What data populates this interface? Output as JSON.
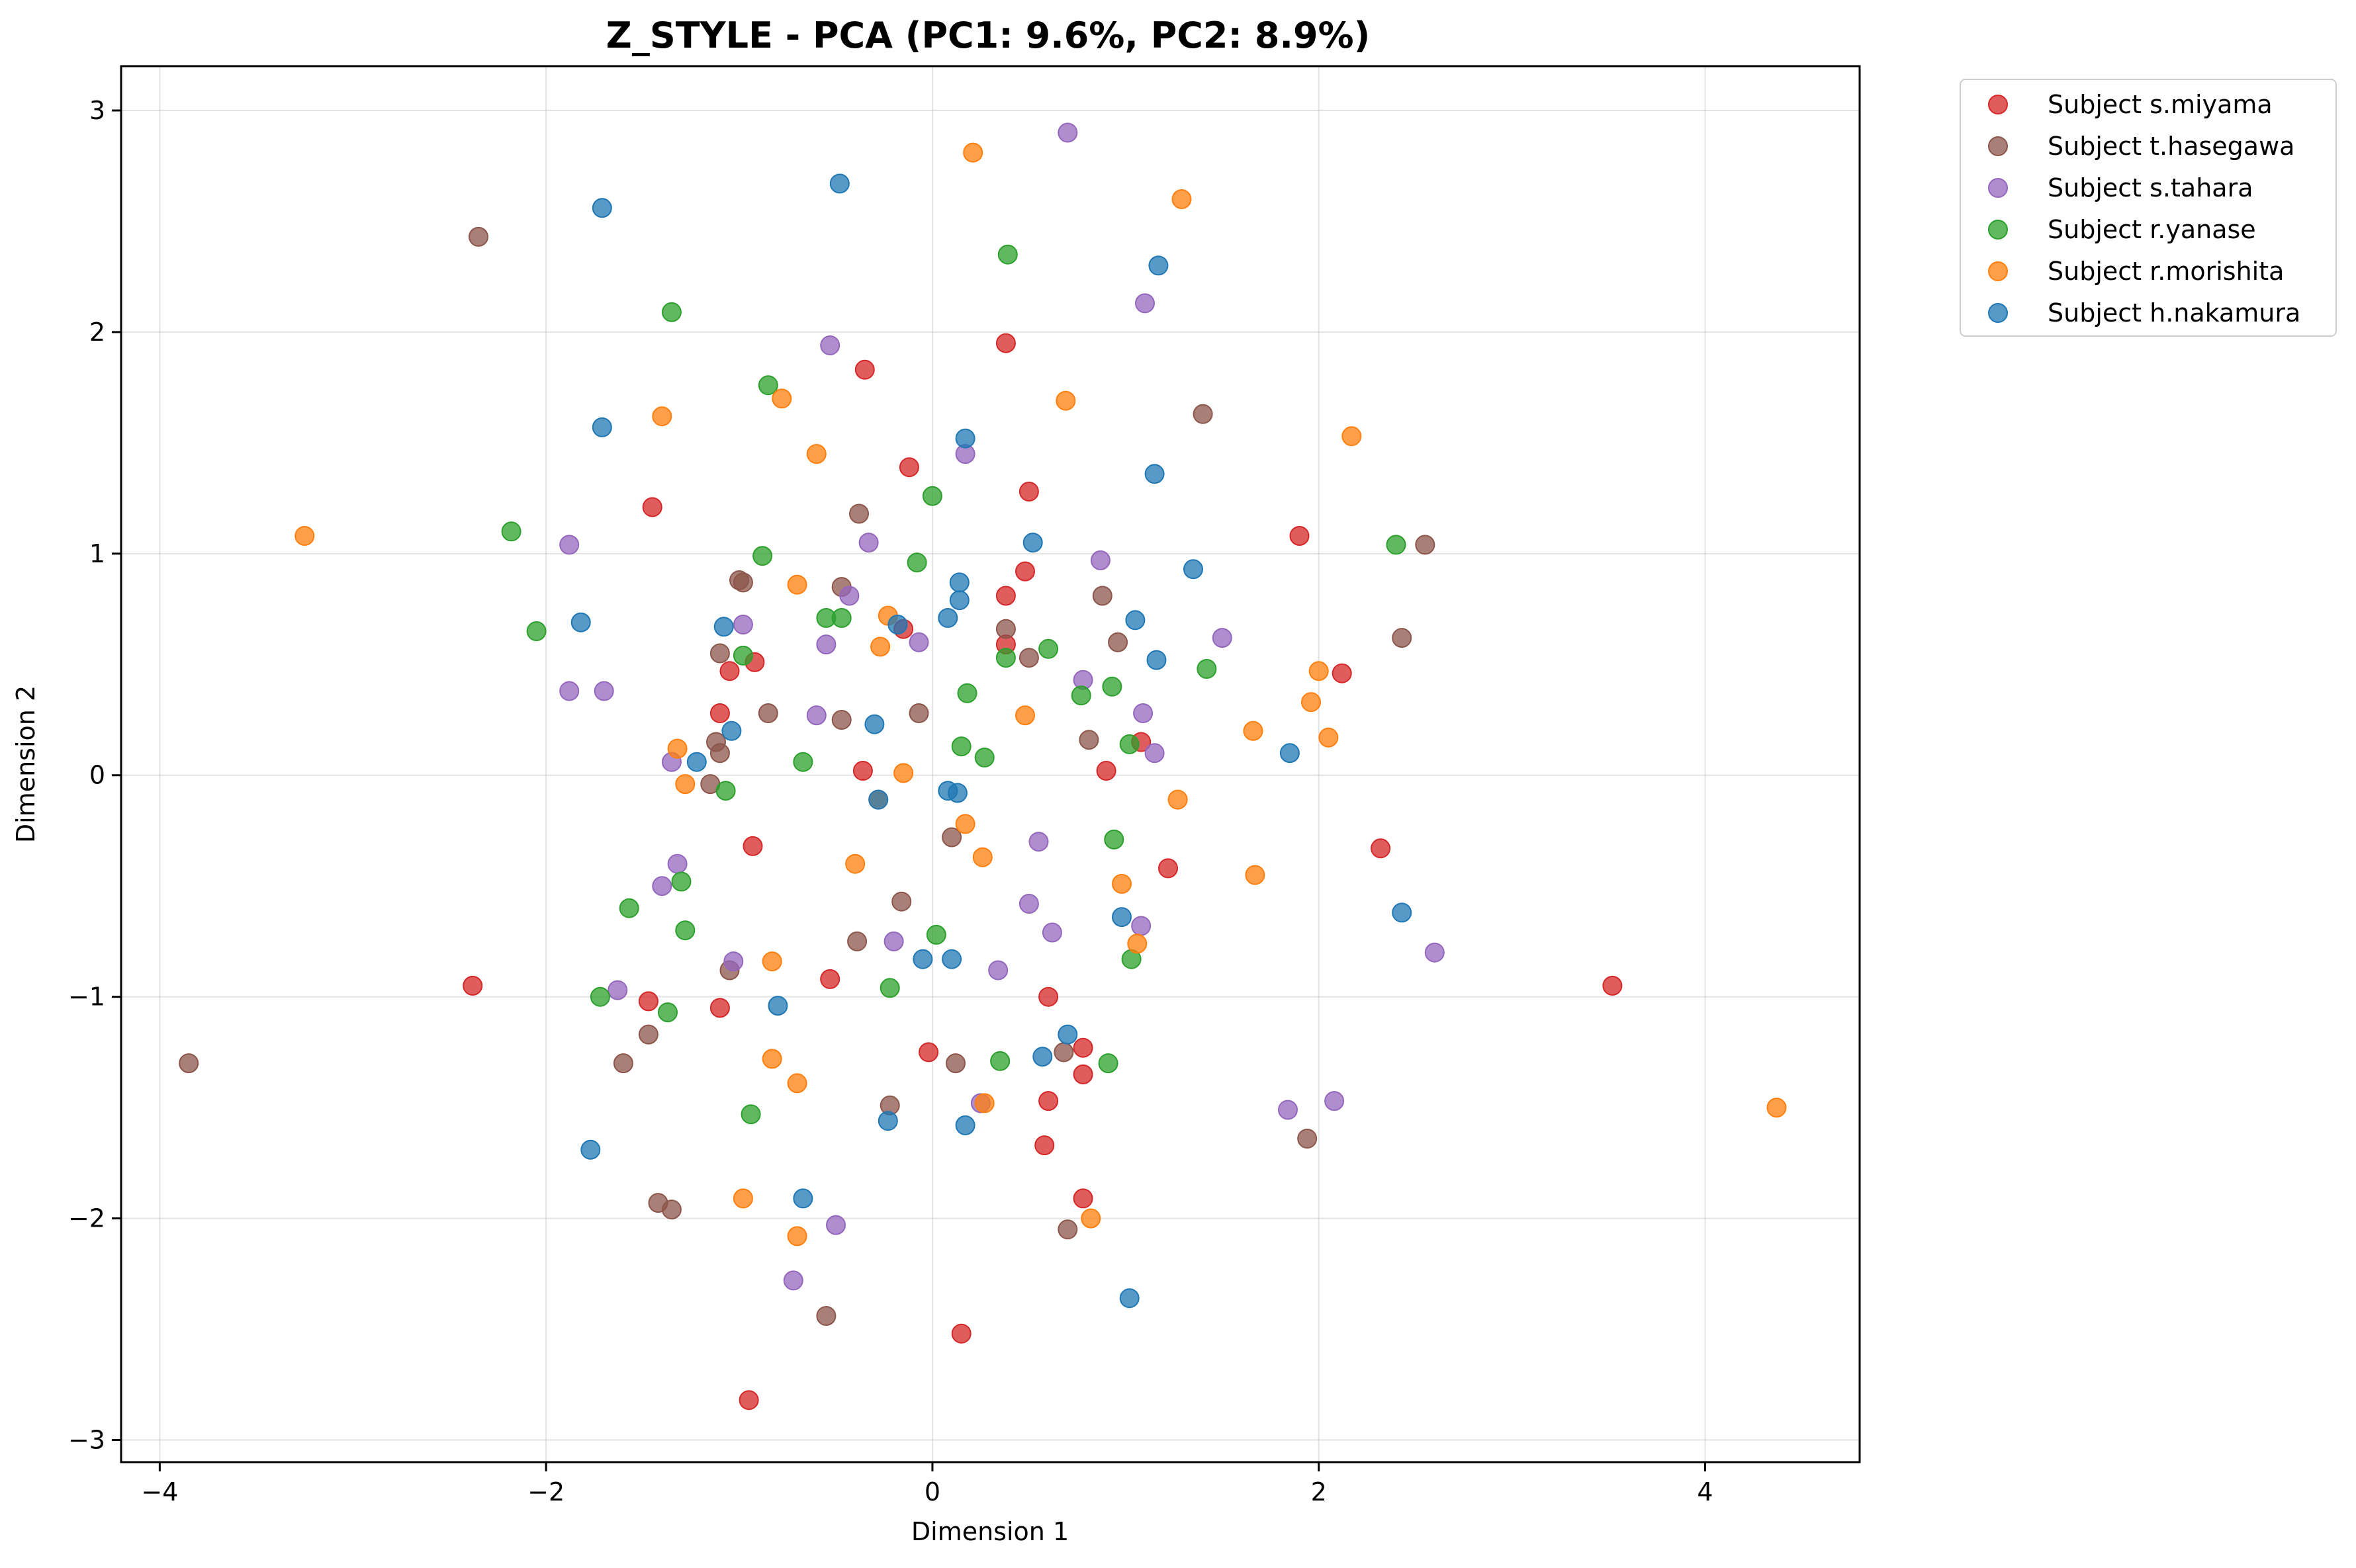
{
  "chart_data": {
    "type": "scatter",
    "title": "Z_STYLE - PCA (PC1: 9.6%, PC2: 8.9%)",
    "xlabel": "Dimension 1",
    "ylabel": "Dimension 2",
    "xlim": [
      -4.2,
      4.8
    ],
    "ylim": [
      -3.1,
      3.2
    ],
    "xticks": [
      -4,
      -2,
      0,
      2,
      4
    ],
    "yticks": [
      -3,
      -2,
      -1,
      0,
      1,
      2,
      3
    ],
    "xtick_labels": [
      "−4",
      "−2",
      "0",
      "2",
      "4"
    ],
    "ytick_labels": [
      "−3",
      "−2",
      "−1",
      "0",
      "1",
      "2",
      "3"
    ],
    "grid": true,
    "legend_position": "outside-top-right",
    "series": [
      {
        "name": "Subject s.miyama",
        "color": "#d62728",
        "points": [
          [
            -0.35,
            1.83
          ],
          [
            0.38,
            1.95
          ],
          [
            -0.12,
            1.39
          ],
          [
            0.5,
            1.28
          ],
          [
            -1.45,
            1.21
          ],
          [
            1.9,
            1.08
          ],
          [
            0.48,
            0.92
          ],
          [
            0.38,
            0.81
          ],
          [
            -0.15,
            0.66
          ],
          [
            0.38,
            0.59
          ],
          [
            -0.92,
            0.51
          ],
          [
            -1.05,
            0.47
          ],
          [
            2.12,
            0.46
          ],
          [
            -1.1,
            0.28
          ],
          [
            1.08,
            0.15
          ],
          [
            -0.36,
            0.02
          ],
          [
            0.9,
            0.02
          ],
          [
            -0.93,
            -0.32
          ],
          [
            2.32,
            -0.33
          ],
          [
            1.22,
            -0.42
          ],
          [
            -2.38,
            -0.95
          ],
          [
            3.52,
            -0.95
          ],
          [
            -0.53,
            -0.92
          ],
          [
            -1.47,
            -1.02
          ],
          [
            0.6,
            -1.0
          ],
          [
            -1.1,
            -1.05
          ],
          [
            -0.02,
            -1.25
          ],
          [
            0.78,
            -1.23
          ],
          [
            0.78,
            -1.35
          ],
          [
            0.6,
            -1.47
          ],
          [
            0.58,
            -1.67
          ],
          [
            0.78,
            -1.91
          ],
          [
            0.15,
            -2.52
          ],
          [
            -0.95,
            -2.82
          ]
        ]
      },
      {
        "name": "Subject t.hasegawa",
        "color": "#8c564b",
        "points": [
          [
            -2.35,
            2.43
          ],
          [
            1.4,
            1.63
          ],
          [
            -0.38,
            1.18
          ],
          [
            2.55,
            1.04
          ],
          [
            -1.0,
            0.88
          ],
          [
            -0.98,
            0.87
          ],
          [
            -0.47,
            0.85
          ],
          [
            0.88,
            0.81
          ],
          [
            0.38,
            0.66
          ],
          [
            2.43,
            0.62
          ],
          [
            0.96,
            0.6
          ],
          [
            -1.1,
            0.55
          ],
          [
            0.5,
            0.53
          ],
          [
            -0.85,
            0.28
          ],
          [
            -0.07,
            0.28
          ],
          [
            -0.47,
            0.25
          ],
          [
            0.81,
            0.16
          ],
          [
            -1.12,
            0.15
          ],
          [
            -1.1,
            0.1
          ],
          [
            -1.15,
            -0.04
          ],
          [
            0.1,
            -0.28
          ],
          [
            -0.16,
            -0.57
          ],
          [
            -0.39,
            -0.75
          ],
          [
            -1.05,
            -0.88
          ],
          [
            -3.85,
            -1.3
          ],
          [
            -1.47,
            -1.17
          ],
          [
            -1.6,
            -1.3
          ],
          [
            0.68,
            -1.25
          ],
          [
            0.12,
            -1.3
          ],
          [
            -0.22,
            -1.49
          ],
          [
            1.94,
            -1.64
          ],
          [
            -1.42,
            -1.93
          ],
          [
            -1.35,
            -1.96
          ],
          [
            0.7,
            -2.05
          ],
          [
            -0.55,
            -2.44
          ]
        ]
      },
      {
        "name": "Subject s.tahara",
        "color": "#9467bd",
        "points": [
          [
            0.7,
            2.9
          ],
          [
            1.1,
            2.13
          ],
          [
            -0.53,
            1.94
          ],
          [
            0.17,
            1.45
          ],
          [
            -1.88,
            1.04
          ],
          [
            -0.33,
            1.05
          ],
          [
            0.87,
            0.97
          ],
          [
            -0.43,
            0.81
          ],
          [
            -0.98,
            0.68
          ],
          [
            1.5,
            0.62
          ],
          [
            -0.07,
            0.6
          ],
          [
            -0.55,
            0.59
          ],
          [
            0.78,
            0.43
          ],
          [
            -1.88,
            0.38
          ],
          [
            -1.7,
            0.38
          ],
          [
            -0.6,
            0.27
          ],
          [
            1.09,
            0.28
          ],
          [
            1.15,
            0.1
          ],
          [
            -1.35,
            0.06
          ],
          [
            0.55,
            -0.3
          ],
          [
            -1.32,
            -0.4
          ],
          [
            -1.4,
            -0.5
          ],
          [
            0.5,
            -0.58
          ],
          [
            0.62,
            -0.71
          ],
          [
            1.08,
            -0.68
          ],
          [
            -0.2,
            -0.75
          ],
          [
            2.6,
            -0.8
          ],
          [
            -1.03,
            -0.84
          ],
          [
            0.34,
            -0.88
          ],
          [
            -1.63,
            -0.97
          ],
          [
            0.25,
            -1.48
          ],
          [
            2.08,
            -1.47
          ],
          [
            1.84,
            -1.51
          ],
          [
            -0.5,
            -2.03
          ],
          [
            -0.72,
            -2.28
          ]
        ]
      },
      {
        "name": "Subject r.yanase",
        "color": "#2ca02c",
        "points": [
          [
            0.39,
            2.35
          ],
          [
            -1.35,
            2.09
          ],
          [
            -0.85,
            1.76
          ],
          [
            0.0,
            1.26
          ],
          [
            -2.18,
            1.1
          ],
          [
            2.4,
            1.04
          ],
          [
            -0.88,
            0.99
          ],
          [
            -0.08,
            0.96
          ],
          [
            -2.05,
            0.65
          ],
          [
            -0.55,
            0.71
          ],
          [
            -0.47,
            0.71
          ],
          [
            0.6,
            0.57
          ],
          [
            -0.98,
            0.54
          ],
          [
            0.38,
            0.53
          ],
          [
            1.42,
            0.48
          ],
          [
            0.93,
            0.4
          ],
          [
            0.77,
            0.36
          ],
          [
            0.18,
            0.37
          ],
          [
            1.02,
            0.14
          ],
          [
            0.15,
            0.13
          ],
          [
            0.27,
            0.08
          ],
          [
            -0.67,
            0.06
          ],
          [
            -1.07,
            -0.07
          ],
          [
            0.94,
            -0.29
          ],
          [
            -1.3,
            -0.48
          ],
          [
            -1.57,
            -0.6
          ],
          [
            -1.28,
            -0.7
          ],
          [
            0.02,
            -0.72
          ],
          [
            1.03,
            -0.83
          ],
          [
            -0.22,
            -0.96
          ],
          [
            -1.72,
            -1.0
          ],
          [
            -1.37,
            -1.07
          ],
          [
            0.35,
            -1.29
          ],
          [
            0.91,
            -1.3
          ],
          [
            -0.94,
            -1.53
          ]
        ]
      },
      {
        "name": "Subject r.morishita",
        "color": "#ff7f0e",
        "points": [
          [
            0.21,
            2.81
          ],
          [
            1.29,
            2.6
          ],
          [
            -0.78,
            1.7
          ],
          [
            0.69,
            1.69
          ],
          [
            -1.4,
            1.62
          ],
          [
            2.17,
            1.53
          ],
          [
            -0.6,
            1.45
          ],
          [
            -3.25,
            1.08
          ],
          [
            -0.7,
            0.86
          ],
          [
            -0.23,
            0.72
          ],
          [
            -0.27,
            0.58
          ],
          [
            2.0,
            0.47
          ],
          [
            1.96,
            0.33
          ],
          [
            0.48,
            0.27
          ],
          [
            1.66,
            0.2
          ],
          [
            2.05,
            0.17
          ],
          [
            -1.32,
            0.12
          ],
          [
            -0.15,
            0.01
          ],
          [
            -1.28,
            -0.04
          ],
          [
            -0.28,
            -0.11
          ],
          [
            1.27,
            -0.11
          ],
          [
            0.17,
            -0.22
          ],
          [
            0.26,
            -0.37
          ],
          [
            -0.4,
            -0.4
          ],
          [
            1.67,
            -0.45
          ],
          [
            0.98,
            -0.49
          ],
          [
            1.06,
            -0.76
          ],
          [
            -0.83,
            -0.84
          ],
          [
            -0.83,
            -1.28
          ],
          [
            -0.7,
            -1.39
          ],
          [
            0.27,
            -1.48
          ],
          [
            4.37,
            -1.5
          ],
          [
            -0.98,
            -1.91
          ],
          [
            0.82,
            -2.0
          ],
          [
            -0.7,
            -2.08
          ]
        ]
      },
      {
        "name": "Subject h.nakamura",
        "color": "#1f77b4",
        "points": [
          [
            -0.48,
            2.67
          ],
          [
            -1.71,
            2.56
          ],
          [
            1.17,
            2.3
          ],
          [
            -1.71,
            1.57
          ],
          [
            0.17,
            1.52
          ],
          [
            1.15,
            1.36
          ],
          [
            0.52,
            1.05
          ],
          [
            1.35,
            0.93
          ],
          [
            0.14,
            0.87
          ],
          [
            0.14,
            0.79
          ],
          [
            -1.82,
            0.69
          ],
          [
            1.05,
            0.7
          ],
          [
            -1.08,
            0.67
          ],
          [
            -0.18,
            0.68
          ],
          [
            0.08,
            0.71
          ],
          [
            1.16,
            0.52
          ],
          [
            -0.3,
            0.23
          ],
          [
            -1.04,
            0.2
          ],
          [
            1.85,
            0.1
          ],
          [
            -1.22,
            0.06
          ],
          [
            0.08,
            -0.07
          ],
          [
            0.13,
            -0.08
          ],
          [
            -0.28,
            -0.11
          ],
          [
            2.43,
            -0.62
          ],
          [
            0.98,
            -0.64
          ],
          [
            -0.05,
            -0.83
          ],
          [
            0.1,
            -0.83
          ],
          [
            -0.8,
            -1.04
          ],
          [
            0.7,
            -1.17
          ],
          [
            0.57,
            -1.27
          ],
          [
            -0.23,
            -1.56
          ],
          [
            0.17,
            -1.58
          ],
          [
            -1.77,
            -1.69
          ],
          [
            -0.67,
            -1.91
          ],
          [
            1.02,
            -2.36
          ]
        ]
      }
    ]
  }
}
